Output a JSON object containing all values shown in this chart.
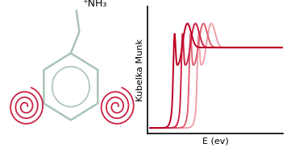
{
  "title": "",
  "ylabel": "Kubelka Munk",
  "xlabel": "E (ev)",
  "curve_colors": [
    "#bb0022",
    "#cc2244",
    "#e06070",
    "#f0a0aa"
  ],
  "curve_x0s": [
    0.18,
    0.24,
    0.3,
    0.36
  ],
  "background": "#ffffff",
  "mol_label": "⁺NH₃",
  "hex_color": "#aac4b4",
  "spiral_color": "#cc2244",
  "spine_color": "#000000",
  "figsize": [
    3.66,
    1.89
  ],
  "dpi": 100
}
